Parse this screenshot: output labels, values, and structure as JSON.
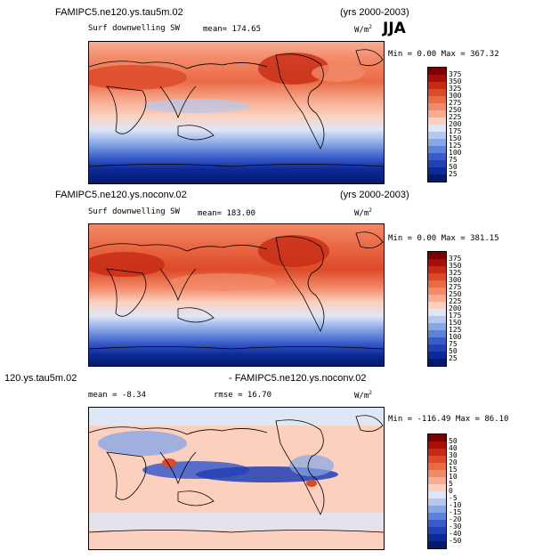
{
  "season": "JJA",
  "panels": [
    {
      "title_left": "FAMIPC5.ne120.ys.tau5m.02",
      "title_right": "(yrs 2000-2003)",
      "variable": "Surf downwelling SW",
      "stat_label": "mean= 174.65",
      "units": "W/m",
      "units_sup": "2",
      "minmax": "Min =   0.00 Max = 367.32",
      "colorbar": {
        "labels": [
          "375",
          "350",
          "325",
          "300",
          "275",
          "250",
          "225",
          "200",
          "175",
          "150",
          "125",
          "100",
          "75",
          "50",
          "25"
        ],
        "colors": [
          "#7a0000",
          "#a80d06",
          "#c62a14",
          "#dc4a28",
          "#ea6a45",
          "#f28a68",
          "#f7ad92",
          "#fbd0bf",
          "#dfe6f6",
          "#b6c8ee",
          "#88a7e6",
          "#5c82da",
          "#3a5cca",
          "#2140b4",
          "#0c2a98",
          "#031a6e"
        ]
      }
    },
    {
      "title_left": "FAMIPC5.ne120.ys.noconv.02",
      "title_right": "(yrs 2000-2003)",
      "variable": "Surf downwelling SW",
      "stat_label": "mean= 183.00",
      "units": "W/m",
      "units_sup": "2",
      "minmax": "Min =   0.00 Max = 381.15",
      "colorbar": {
        "labels": [
          "375",
          "350",
          "325",
          "300",
          "275",
          "250",
          "225",
          "200",
          "175",
          "150",
          "125",
          "100",
          "75",
          "50",
          "25"
        ],
        "colors": [
          "#7a0000",
          "#a80d06",
          "#c62a14",
          "#dc4a28",
          "#ea6a45",
          "#f28a68",
          "#f7ad92",
          "#fbd0bf",
          "#dfe6f6",
          "#b6c8ee",
          "#88a7e6",
          "#5c82da",
          "#3a5cca",
          "#2140b4",
          "#0c2a98",
          "#031a6e"
        ]
      }
    },
    {
      "title_left": "120.ys.tau5m.02",
      "title_right": "- FAMIPC5.ne120.ys.noconv.02",
      "stat_label": "mean =  -8.34",
      "stat_label2": "rmse =  16.70",
      "units": "W/m",
      "units_sup": "2",
      "minmax": "Min = -116.49 Max =  86.10",
      "colorbar": {
        "labels": [
          "50",
          "40",
          "30",
          "20",
          "15",
          "10",
          "5",
          "0",
          "-5",
          "-10",
          "-15",
          "-20",
          "-30",
          "-40",
          "-50"
        ],
        "colors": [
          "#7a0000",
          "#a80d06",
          "#c62a14",
          "#dc4a28",
          "#ea6a45",
          "#f28a68",
          "#f7ad92",
          "#fbd0bf",
          "#dfe6f6",
          "#b6c8ee",
          "#88a7e6",
          "#5c82da",
          "#3a5cca",
          "#2140b4",
          "#0c2a98",
          "#031a6e"
        ]
      }
    }
  ]
}
